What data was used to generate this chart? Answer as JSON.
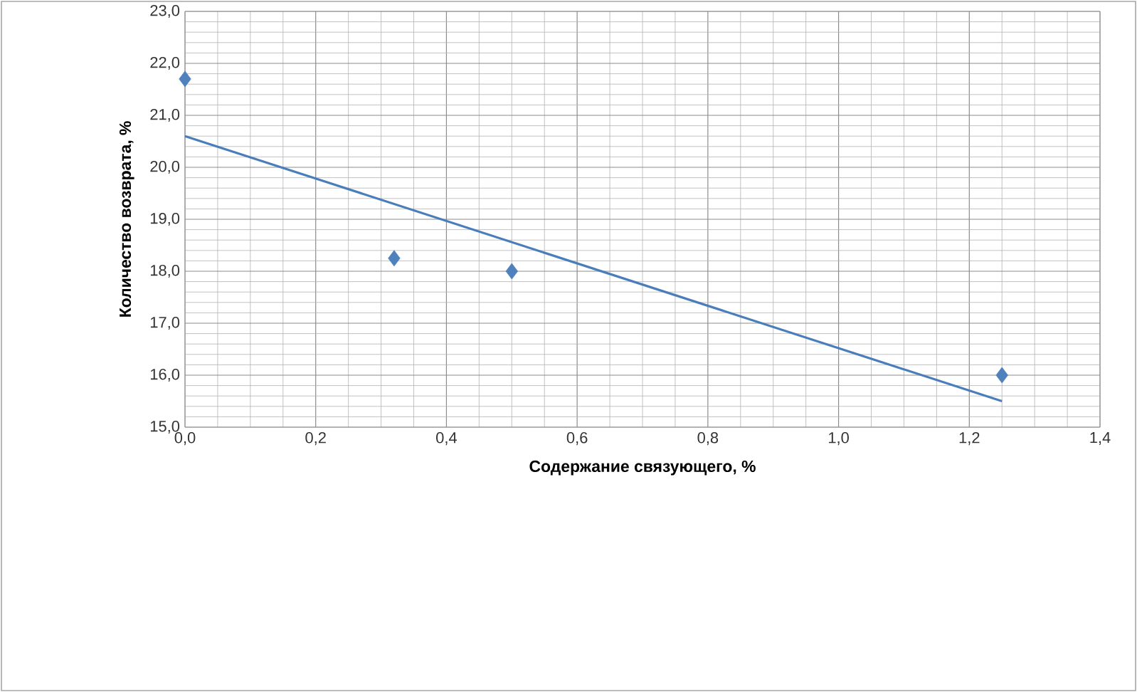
{
  "chart_data": {
    "type": "scatter",
    "xlabel": "Содержание связующего, %",
    "ylabel": "Количество возврата, %",
    "series": [
      {
        "color": "#4f81bd",
        "marker": "diamond",
        "x": [
          0,
          0.32,
          0.5,
          1.25
        ],
        "values": [
          21.7,
          18.25,
          18.0,
          16.0
        ]
      },
      {
        "type": "line",
        "color": "#4a7ebb",
        "marker": "none",
        "line_style": "solid",
        "x": [
          0,
          1.25
        ],
        "values": [
          20.6,
          15.5
        ]
      }
    ],
    "xlim": [
      0,
      1.4
    ],
    "ylim": [
      15,
      23
    ],
    "xticks": [
      {
        "value": 0,
        "label": "0,0"
      },
      {
        "value": 0.2,
        "label": "0,2"
      },
      {
        "value": 0.4,
        "label": "0,4"
      },
      {
        "value": 0.6,
        "label": "0,6"
      },
      {
        "value": 0.8,
        "label": "0,8"
      },
      {
        "value": 1.0,
        "label": "1,0"
      },
      {
        "value": 1.2,
        "label": "1,2"
      },
      {
        "value": 1.4,
        "label": "1,4"
      }
    ],
    "yticks": [
      {
        "value": 15,
        "label": "15,0"
      },
      {
        "value": 16,
        "label": "16,0"
      },
      {
        "value": 17,
        "label": "17,0"
      },
      {
        "value": 18,
        "label": "18,0"
      },
      {
        "value": 19,
        "label": "19,0"
      },
      {
        "value": 20,
        "label": "20,0"
      },
      {
        "value": 21,
        "label": "21,0"
      },
      {
        "value": 22,
        "label": "22,0"
      },
      {
        "value": 23,
        "label": "23,0"
      }
    ],
    "grid": true,
    "legend": false
  }
}
